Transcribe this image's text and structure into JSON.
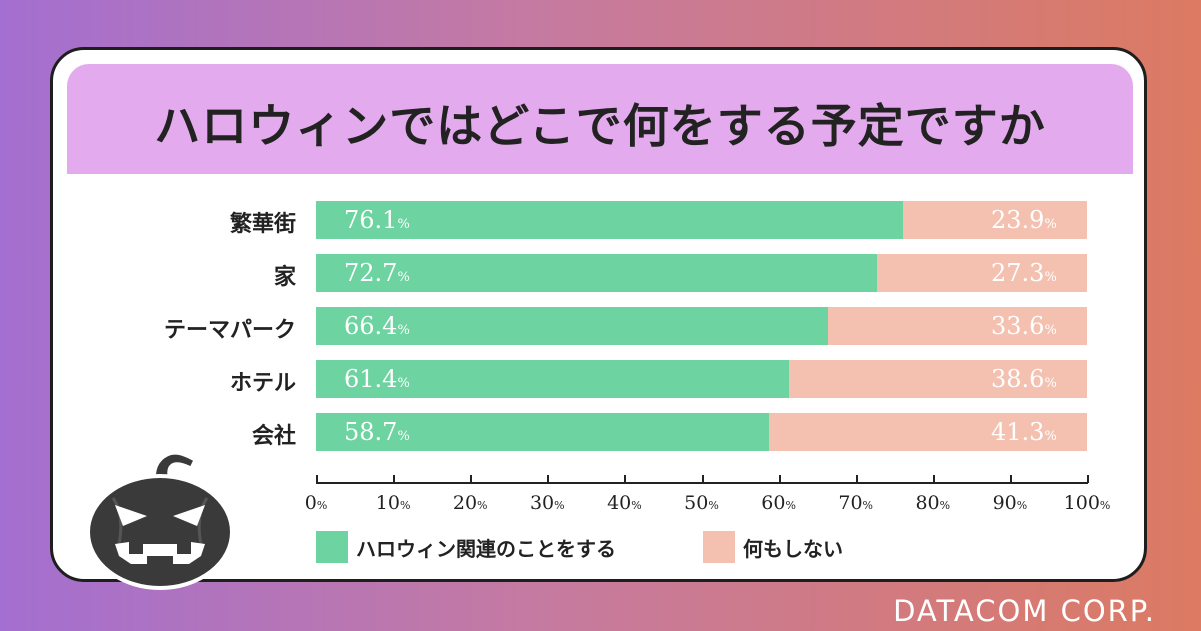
{
  "title": "ハロウィンではどこで何をする予定ですか",
  "colors": {
    "series1": "#6dd3a0",
    "series2": "#f4c0b0",
    "title_band": "#e4aaee"
  },
  "chart_data": {
    "type": "bar",
    "orientation": "horizontal",
    "stacked": true,
    "categories": [
      "繁華街",
      "家",
      "テーマパーク",
      "ホテル",
      "会社"
    ],
    "series": [
      {
        "name": "ハロウィン関連のことをする",
        "values": [
          76.1,
          72.7,
          66.4,
          61.4,
          58.7
        ]
      },
      {
        "name": "何もしない",
        "values": [
          23.9,
          27.3,
          33.6,
          38.6,
          41.3
        ]
      }
    ],
    "value_labels": [
      [
        "76.1",
        "72.7",
        "66.4",
        "61.4",
        "58.7"
      ],
      [
        "23.9",
        "27.3",
        "33.6",
        "38.6",
        "41.3"
      ]
    ],
    "unit": "%",
    "xlim": [
      0,
      100
    ],
    "x_ticks": [
      "0",
      "10",
      "20",
      "30",
      "40",
      "50",
      "60",
      "70",
      "80",
      "90",
      "100"
    ],
    "grid": false,
    "legend_position": "bottom"
  },
  "footer": "DATACOM CORP.",
  "decoration": "jack-o-lantern-icon"
}
